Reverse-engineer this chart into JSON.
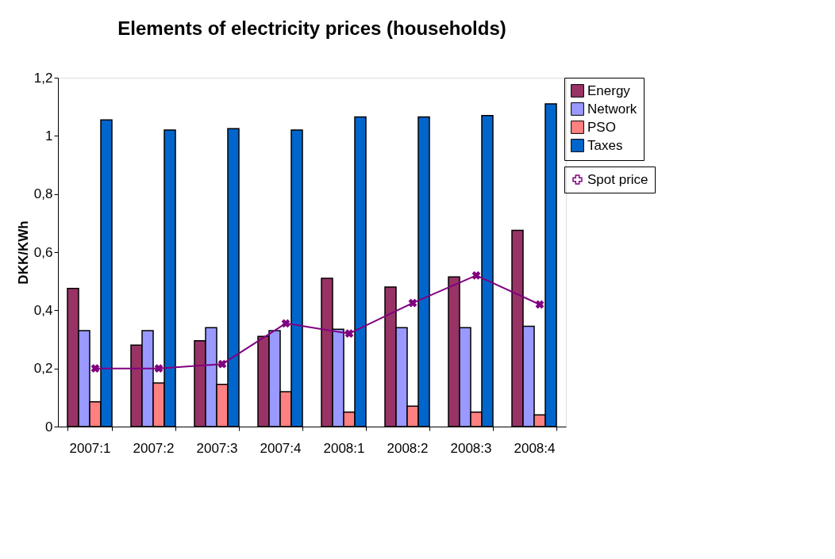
{
  "chart_data": {
    "type": "bar",
    "title": "Elements of electricity prices (households)",
    "ylabel": "DKK/KWh",
    "categories": [
      "2007:1",
      "2007:2",
      "2007:3",
      "2007:4",
      "2008:1",
      "2008:2",
      "2008:3",
      "2008:4"
    ],
    "series": [
      {
        "name": "Energy",
        "color": "#993366",
        "values": [
          0.475,
          0.28,
          0.295,
          0.31,
          0.51,
          0.48,
          0.515,
          0.675
        ]
      },
      {
        "name": "Network",
        "color": "#9999ff",
        "values": [
          0.33,
          0.33,
          0.34,
          0.33,
          0.335,
          0.34,
          0.34,
          0.345
        ]
      },
      {
        "name": "PSO",
        "color": "#ff8080",
        "values": [
          0.085,
          0.15,
          0.145,
          0.12,
          0.05,
          0.07,
          0.05,
          0.04
        ]
      },
      {
        "name": "Taxes",
        "color": "#0066cc",
        "values": [
          1.055,
          1.02,
          1.025,
          1.02,
          1.065,
          1.065,
          1.07,
          1.11
        ]
      },
      {
        "name": "Spot price",
        "type": "line",
        "color": "#800080",
        "marker": "cross",
        "values": [
          0.2,
          0.2,
          0.215,
          0.355,
          0.32,
          0.425,
          0.52,
          0.42
        ]
      }
    ],
    "ylim": [
      0,
      1.2
    ],
    "yticks": [
      0,
      {
        "value": 0.2,
        "label": "0,2"
      },
      {
        "value": 0.4,
        "label": "0,4"
      },
      {
        "value": 0.6,
        "label": "0,6"
      },
      {
        "value": 0.8,
        "label": "0,8"
      },
      1,
      {
        "value": 1.2,
        "label": "1,2"
      }
    ],
    "grid": false,
    "legend": "right"
  }
}
